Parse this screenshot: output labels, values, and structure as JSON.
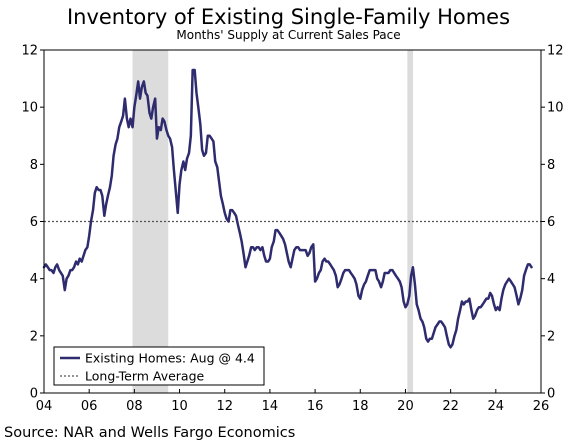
{
  "chart_data": {
    "type": "line",
    "title": "Inventory of Existing Single-Family Homes",
    "subtitle": "Months' Supply at Current Sales Pace",
    "source": "Source: NAR and Wells Fargo Economics",
    "xlabel": "",
    "ylabel": "",
    "xlim": [
      2004,
      2026
    ],
    "ylim": [
      0,
      12
    ],
    "x_ticks": [
      2004,
      2006,
      2008,
      2010,
      2012,
      2014,
      2016,
      2018,
      2020,
      2022,
      2024,
      2026
    ],
    "x_tick_labels": [
      "04",
      "06",
      "08",
      "10",
      "12",
      "14",
      "16",
      "18",
      "20",
      "22",
      "24",
      "26"
    ],
    "y_ticks": [
      0,
      2,
      4,
      6,
      8,
      10,
      12
    ],
    "y_tick_labels": [
      "0",
      "2",
      "4",
      "6",
      "8",
      "10",
      "12"
    ],
    "grid": false,
    "legend_position": "bottom-left",
    "colors": {
      "series": "#2e2b6e",
      "average": "#555555",
      "recession": "#dcdcdc"
    },
    "recessions": [
      {
        "start": 2007.917,
        "end": 2009.5
      },
      {
        "start": 2020.083,
        "end": 2020.333
      }
    ],
    "reference_lines": [
      {
        "name": "Long-Term Average",
        "y": 6.0,
        "style": "dotted"
      }
    ],
    "legend": [
      {
        "label": "Existing Homes: Aug @ 4.4",
        "style": "solid"
      },
      {
        "label": "Long-Term Average",
        "style": "dotted"
      }
    ],
    "series": [
      {
        "name": "Existing Homes: Aug @ 4.4",
        "points": [
          [
            2004.0,
            4.4
          ],
          [
            2004.08,
            4.5
          ],
          [
            2004.17,
            4.4
          ],
          [
            2004.25,
            4.3
          ],
          [
            2004.33,
            4.3
          ],
          [
            2004.42,
            4.2
          ],
          [
            2004.5,
            4.4
          ],
          [
            2004.58,
            4.5
          ],
          [
            2004.67,
            4.3
          ],
          [
            2004.75,
            4.2
          ],
          [
            2004.83,
            4.1
          ],
          [
            2004.92,
            3.6
          ],
          [
            2005.0,
            4.0
          ],
          [
            2005.08,
            4.1
          ],
          [
            2005.17,
            4.3
          ],
          [
            2005.25,
            4.3
          ],
          [
            2005.33,
            4.4
          ],
          [
            2005.42,
            4.6
          ],
          [
            2005.5,
            4.5
          ],
          [
            2005.58,
            4.7
          ],
          [
            2005.67,
            4.6
          ],
          [
            2005.75,
            4.8
          ],
          [
            2005.83,
            5.0
          ],
          [
            2005.92,
            5.1
          ],
          [
            2006.0,
            5.5
          ],
          [
            2006.08,
            6.0
          ],
          [
            2006.17,
            6.4
          ],
          [
            2006.25,
            7.0
          ],
          [
            2006.33,
            7.2
          ],
          [
            2006.42,
            7.1
          ],
          [
            2006.5,
            7.1
          ],
          [
            2006.58,
            6.9
          ],
          [
            2006.67,
            6.2
          ],
          [
            2006.75,
            6.6
          ],
          [
            2006.83,
            6.9
          ],
          [
            2006.92,
            7.2
          ],
          [
            2007.0,
            7.6
          ],
          [
            2007.08,
            8.3
          ],
          [
            2007.17,
            8.7
          ],
          [
            2007.25,
            8.9
          ],
          [
            2007.33,
            9.3
          ],
          [
            2007.42,
            9.5
          ],
          [
            2007.5,
            9.7
          ],
          [
            2007.58,
            10.3
          ],
          [
            2007.67,
            9.6
          ],
          [
            2007.75,
            9.3
          ],
          [
            2007.83,
            9.6
          ],
          [
            2007.92,
            9.3
          ],
          [
            2008.0,
            10.0
          ],
          [
            2008.08,
            10.4
          ],
          [
            2008.17,
            10.9
          ],
          [
            2008.25,
            10.3
          ],
          [
            2008.33,
            10.7
          ],
          [
            2008.42,
            10.9
          ],
          [
            2008.5,
            10.5
          ],
          [
            2008.58,
            10.4
          ],
          [
            2008.67,
            9.8
          ],
          [
            2008.75,
            9.6
          ],
          [
            2008.83,
            10.0
          ],
          [
            2008.92,
            10.3
          ],
          [
            2009.0,
            8.9
          ],
          [
            2009.08,
            9.3
          ],
          [
            2009.17,
            9.2
          ],
          [
            2009.25,
            9.6
          ],
          [
            2009.33,
            9.5
          ],
          [
            2009.42,
            9.2
          ],
          [
            2009.5,
            9.0
          ],
          [
            2009.58,
            8.9
          ],
          [
            2009.67,
            8.6
          ],
          [
            2009.75,
            7.8
          ],
          [
            2009.83,
            7.1
          ],
          [
            2009.92,
            6.3
          ],
          [
            2010.0,
            7.3
          ],
          [
            2010.08,
            7.8
          ],
          [
            2010.17,
            8.1
          ],
          [
            2010.25,
            7.8
          ],
          [
            2010.33,
            8.2
          ],
          [
            2010.42,
            8.4
          ],
          [
            2010.5,
            9.0
          ],
          [
            2010.58,
            11.3
          ],
          [
            2010.67,
            11.3
          ],
          [
            2010.75,
            10.5
          ],
          [
            2010.83,
            10.0
          ],
          [
            2010.92,
            9.4
          ],
          [
            2011.0,
            8.5
          ],
          [
            2011.08,
            8.3
          ],
          [
            2011.17,
            8.4
          ],
          [
            2011.25,
            9.0
          ],
          [
            2011.33,
            9.0
          ],
          [
            2011.42,
            8.9
          ],
          [
            2011.5,
            8.8
          ],
          [
            2011.58,
            8.1
          ],
          [
            2011.67,
            7.9
          ],
          [
            2011.75,
            7.4
          ],
          [
            2011.83,
            6.9
          ],
          [
            2011.92,
            6.6
          ],
          [
            2012.0,
            6.3
          ],
          [
            2012.08,
            6.1
          ],
          [
            2012.17,
            6.0
          ],
          [
            2012.25,
            6.4
          ],
          [
            2012.33,
            6.4
          ],
          [
            2012.42,
            6.3
          ],
          [
            2012.5,
            6.2
          ],
          [
            2012.58,
            5.9
          ],
          [
            2012.67,
            5.6
          ],
          [
            2012.75,
            5.3
          ],
          [
            2012.83,
            4.9
          ],
          [
            2012.92,
            4.4
          ],
          [
            2013.0,
            4.6
          ],
          [
            2013.08,
            4.8
          ],
          [
            2013.17,
            5.1
          ],
          [
            2013.25,
            5.1
          ],
          [
            2013.33,
            5.0
          ],
          [
            2013.42,
            5.1
          ],
          [
            2013.5,
            5.1
          ],
          [
            2013.58,
            5.0
          ],
          [
            2013.67,
            5.1
          ],
          [
            2013.75,
            4.8
          ],
          [
            2013.83,
            4.6
          ],
          [
            2013.92,
            4.6
          ],
          [
            2014.0,
            4.7
          ],
          [
            2014.08,
            5.1
          ],
          [
            2014.17,
            5.3
          ],
          [
            2014.25,
            5.7
          ],
          [
            2014.33,
            5.7
          ],
          [
            2014.42,
            5.6
          ],
          [
            2014.5,
            5.5
          ],
          [
            2014.58,
            5.4
          ],
          [
            2014.67,
            5.2
          ],
          [
            2014.75,
            4.9
          ],
          [
            2014.83,
            4.6
          ],
          [
            2014.92,
            4.4
          ],
          [
            2015.0,
            4.7
          ],
          [
            2015.08,
            5.0
          ],
          [
            2015.17,
            5.1
          ],
          [
            2015.25,
            5.1
          ],
          [
            2015.33,
            5.0
          ],
          [
            2015.42,
            5.0
          ],
          [
            2015.5,
            5.0
          ],
          [
            2015.58,
            5.0
          ],
          [
            2015.67,
            4.8
          ],
          [
            2015.75,
            4.9
          ],
          [
            2015.83,
            5.1
          ],
          [
            2015.92,
            5.2
          ],
          [
            2016.0,
            3.9
          ],
          [
            2016.08,
            4.0
          ],
          [
            2016.17,
            4.2
          ],
          [
            2016.25,
            4.3
          ],
          [
            2016.33,
            4.6
          ],
          [
            2016.42,
            4.7
          ],
          [
            2016.5,
            4.6
          ],
          [
            2016.58,
            4.6
          ],
          [
            2016.67,
            4.5
          ],
          [
            2016.75,
            4.4
          ],
          [
            2016.83,
            4.3
          ],
          [
            2016.92,
            4.1
          ],
          [
            2017.0,
            3.7
          ],
          [
            2017.08,
            3.8
          ],
          [
            2017.17,
            4.0
          ],
          [
            2017.25,
            4.2
          ],
          [
            2017.33,
            4.3
          ],
          [
            2017.42,
            4.3
          ],
          [
            2017.5,
            4.3
          ],
          [
            2017.58,
            4.2
          ],
          [
            2017.67,
            4.1
          ],
          [
            2017.75,
            4.0
          ],
          [
            2017.83,
            3.8
          ],
          [
            2017.92,
            3.4
          ],
          [
            2018.0,
            3.3
          ],
          [
            2018.08,
            3.6
          ],
          [
            2018.17,
            3.8
          ],
          [
            2018.25,
            3.9
          ],
          [
            2018.33,
            4.1
          ],
          [
            2018.42,
            4.3
          ],
          [
            2018.5,
            4.3
          ],
          [
            2018.58,
            4.3
          ],
          [
            2018.67,
            4.3
          ],
          [
            2018.75,
            4.0
          ],
          [
            2018.83,
            3.9
          ],
          [
            2018.92,
            3.7
          ],
          [
            2019.0,
            3.9
          ],
          [
            2019.08,
            4.2
          ],
          [
            2019.17,
            4.2
          ],
          [
            2019.25,
            4.2
          ],
          [
            2019.33,
            4.3
          ],
          [
            2019.42,
            4.3
          ],
          [
            2019.5,
            4.2
          ],
          [
            2019.58,
            4.1
          ],
          [
            2019.67,
            4.0
          ],
          [
            2019.75,
            3.9
          ],
          [
            2019.83,
            3.7
          ],
          [
            2019.92,
            3.2
          ],
          [
            2020.0,
            3.0
          ],
          [
            2020.08,
            3.1
          ],
          [
            2020.17,
            3.4
          ],
          [
            2020.25,
            4.1
          ],
          [
            2020.33,
            4.4
          ],
          [
            2020.42,
            3.8
          ],
          [
            2020.5,
            3.1
          ],
          [
            2020.58,
            2.9
          ],
          [
            2020.67,
            2.6
          ],
          [
            2020.75,
            2.5
          ],
          [
            2020.83,
            2.3
          ],
          [
            2020.92,
            1.9
          ],
          [
            2021.0,
            1.8
          ],
          [
            2021.08,
            1.9
          ],
          [
            2021.17,
            1.9
          ],
          [
            2021.25,
            2.1
          ],
          [
            2021.33,
            2.3
          ],
          [
            2021.42,
            2.4
          ],
          [
            2021.5,
            2.5
          ],
          [
            2021.58,
            2.5
          ],
          [
            2021.67,
            2.4
          ],
          [
            2021.75,
            2.3
          ],
          [
            2021.83,
            2.0
          ],
          [
            2021.92,
            1.7
          ],
          [
            2022.0,
            1.6
          ],
          [
            2022.08,
            1.7
          ],
          [
            2022.17,
            2.0
          ],
          [
            2022.25,
            2.2
          ],
          [
            2022.33,
            2.6
          ],
          [
            2022.42,
            2.9
          ],
          [
            2022.5,
            3.2
          ],
          [
            2022.58,
            3.1
          ],
          [
            2022.67,
            3.2
          ],
          [
            2022.75,
            3.2
          ],
          [
            2022.83,
            3.3
          ],
          [
            2022.92,
            2.9
          ],
          [
            2023.0,
            2.6
          ],
          [
            2023.08,
            2.7
          ],
          [
            2023.17,
            2.9
          ],
          [
            2023.25,
            3.0
          ],
          [
            2023.33,
            3.0
          ],
          [
            2023.42,
            3.1
          ],
          [
            2023.5,
            3.2
          ],
          [
            2023.58,
            3.3
          ],
          [
            2023.67,
            3.3
          ],
          [
            2023.75,
            3.5
          ],
          [
            2023.83,
            3.4
          ],
          [
            2023.92,
            3.1
          ],
          [
            2024.0,
            2.9
          ],
          [
            2024.08,
            3.0
          ],
          [
            2024.17,
            2.9
          ],
          [
            2024.25,
            3.3
          ],
          [
            2024.33,
            3.6
          ],
          [
            2024.42,
            3.8
          ],
          [
            2024.5,
            3.9
          ],
          [
            2024.58,
            4.0
          ],
          [
            2024.67,
            3.9
          ],
          [
            2024.75,
            3.8
          ],
          [
            2024.83,
            3.7
          ],
          [
            2024.92,
            3.4
          ],
          [
            2025.0,
            3.1
          ],
          [
            2025.08,
            3.3
          ],
          [
            2025.17,
            3.6
          ],
          [
            2025.25,
            4.1
          ],
          [
            2025.33,
            4.3
          ],
          [
            2025.42,
            4.5
          ],
          [
            2025.5,
            4.5
          ],
          [
            2025.58,
            4.4
          ]
        ]
      }
    ]
  }
}
